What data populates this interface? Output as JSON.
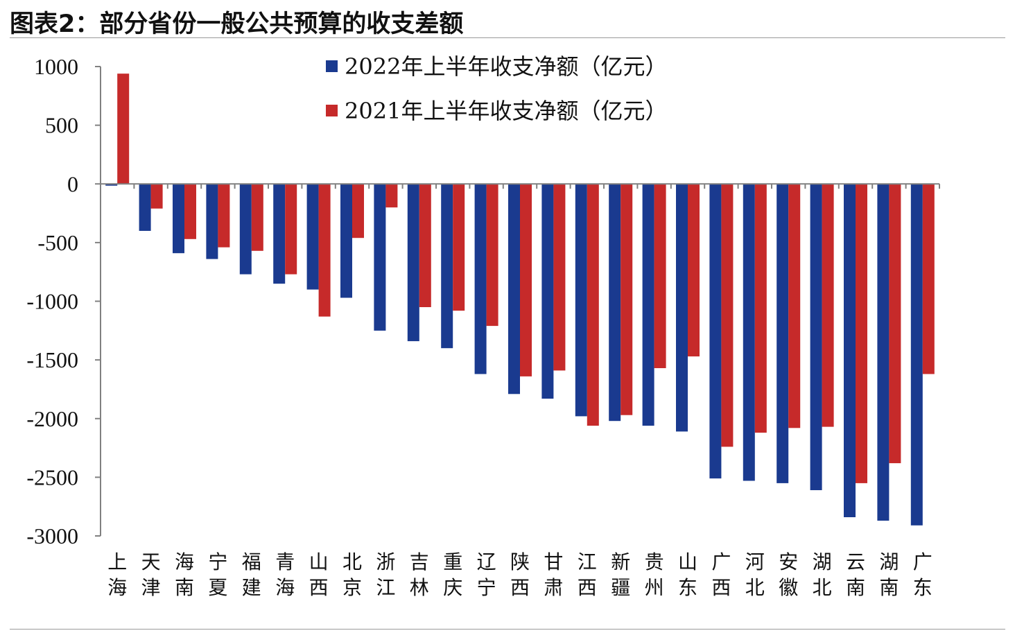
{
  "figure": {
    "title": "图表2：部分省份一般公共预算的收支差额"
  },
  "colors": {
    "series_2022": "#1a3a8f",
    "series_2021": "#c62a2a",
    "axis": "#808080",
    "text": "#111111"
  },
  "chart_data": {
    "type": "bar",
    "title": "图表2：部分省份一般公共预算的收支差额",
    "xlabel": "",
    "ylabel": "",
    "ylim": [
      -3000,
      1000
    ],
    "yticks": [
      1000,
      500,
      0,
      -500,
      -1000,
      -1500,
      -2000,
      -2500,
      -3000
    ],
    "ytick_labels": [
      "1000",
      "500",
      "0",
      "-500",
      "-1000",
      "-1500",
      "-2000",
      "-2500",
      "-3000"
    ],
    "legend_position": "top-center",
    "grid": false,
    "categories": [
      "上海",
      "天津",
      "海南",
      "宁夏",
      "福建",
      "青海",
      "山西",
      "北京",
      "浙江",
      "吉林",
      "重庆",
      "辽宁",
      "陕西",
      "甘肃",
      "江西",
      "新疆",
      "贵州",
      "山东",
      "广西",
      "河北",
      "安徽",
      "湖北",
      "云南",
      "湖南",
      "广东"
    ],
    "series": [
      {
        "name": "2022年上半年收支净额（亿元）",
        "color": "#1a3a8f",
        "values": [
          -15,
          -400,
          -590,
          -640,
          -770,
          -850,
          -900,
          -970,
          -1250,
          -1340,
          -1400,
          -1620,
          -1790,
          -1830,
          -1980,
          -2020,
          -2060,
          -2110,
          -2510,
          -2530,
          -2550,
          -2610,
          -2840,
          -2870,
          -2910
        ]
      },
      {
        "name": "2021年上半年收支净额（亿元）",
        "color": "#c62a2a",
        "values": [
          940,
          -210,
          -470,
          -540,
          -570,
          -770,
          -1130,
          -460,
          -200,
          -1050,
          -1080,
          -1210,
          -1640,
          -1590,
          -2060,
          -1970,
          -1570,
          -1470,
          -2240,
          -2120,
          -2080,
          -2070,
          -2550,
          -2380,
          -1620
        ]
      }
    ]
  }
}
